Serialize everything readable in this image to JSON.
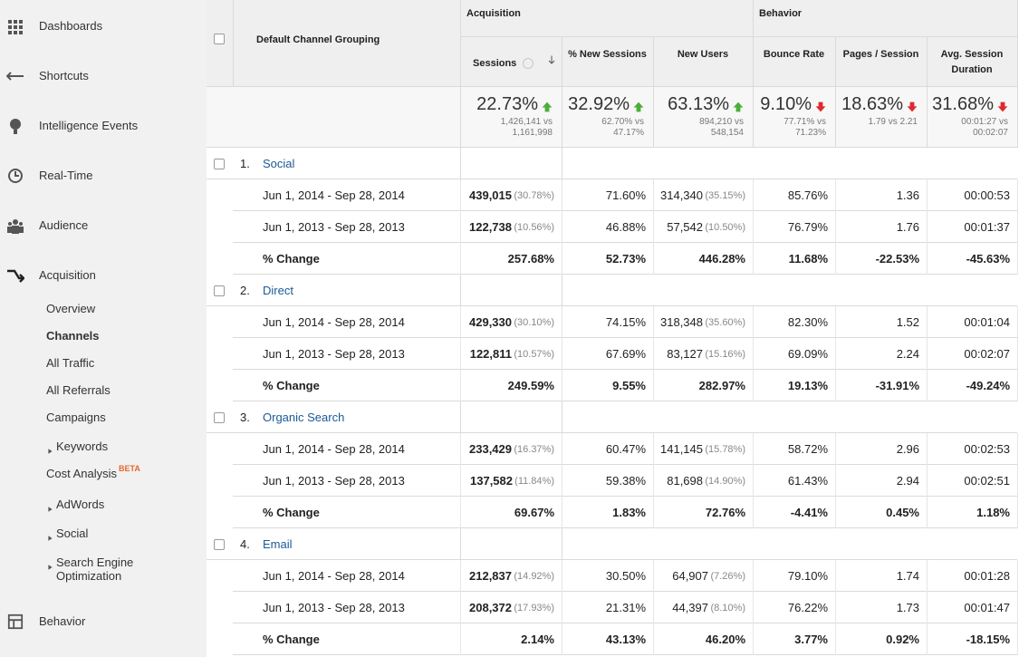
{
  "sidebar": {
    "main": [
      "Dashboards",
      "Shortcuts",
      "Intelligence Events",
      "Real-Time",
      "Audience",
      "Acquisition"
    ],
    "sub": [
      {
        "label": "Overview"
      },
      {
        "label": "Channels",
        "active": true
      },
      {
        "label": "All Traffic"
      },
      {
        "label": "All Referrals"
      },
      {
        "label": "Campaigns"
      },
      {
        "label": "Keywords",
        "expandable": true
      },
      {
        "label": "Cost Analysis",
        "badge": "BETA"
      },
      {
        "label": "AdWords",
        "expandable": true
      },
      {
        "label": "Social",
        "expandable": true
      },
      {
        "label": "Search Engine Optimization",
        "expandable": true
      }
    ],
    "bottom": "Behavior"
  },
  "table": {
    "dimension": "Default Channel Grouping",
    "groups": [
      {
        "label": "Acquisition",
        "span": 3
      },
      {
        "label": "Behavior",
        "span": 3
      }
    ],
    "columns": [
      "Sessions",
      "% New Sessions",
      "New Users",
      "Bounce Rate",
      "Pages / Session",
      "Avg. Session Duration"
    ],
    "summary": [
      {
        "change": "22.73%",
        "direction": "up",
        "detail": [
          "1,426,141 vs",
          "1,161,998"
        ]
      },
      {
        "change": "32.92%",
        "direction": "up",
        "detail": [
          "62.70% vs",
          "47.17%"
        ]
      },
      {
        "change": "63.13%",
        "direction": "up",
        "detail": [
          "894,210 vs",
          "548,154"
        ]
      },
      {
        "change": "9.10%",
        "direction": "down",
        "detail": [
          "77.71% vs",
          "71.23%"
        ]
      },
      {
        "change": "18.63%",
        "direction": "down",
        "detail": [
          "1.79 vs 2.21"
        ]
      },
      {
        "change": "31.68%",
        "direction": "down",
        "detail": [
          "00:01:27 vs",
          "00:02:07"
        ]
      }
    ],
    "channels": [
      {
        "index": "1.",
        "name": "Social",
        "rows": [
          {
            "label": "Jun 1, 2014 - Sep 28, 2014",
            "values": [
              "439,015",
              "71.60%",
              "314,340",
              "85.76%",
              "1.36",
              "00:00:53"
            ],
            "shares": {
              "0": "(30.78%)",
              "2": "(35.15%)"
            }
          },
          {
            "label": "Jun 1, 2013 - Sep 28, 2013",
            "values": [
              "122,738",
              "46.88%",
              "57,542",
              "76.79%",
              "1.76",
              "00:01:37"
            ],
            "shares": {
              "0": "(10.56%)",
              "2": "(10.50%)"
            }
          },
          {
            "label": "% Change",
            "bold": true,
            "values": [
              "257.68%",
              "52.73%",
              "446.28%",
              "11.68%",
              "-22.53%",
              "-45.63%"
            ]
          }
        ]
      },
      {
        "index": "2.",
        "name": "Direct",
        "rows": [
          {
            "label": "Jun 1, 2014 - Sep 28, 2014",
            "values": [
              "429,330",
              "74.15%",
              "318,348",
              "82.30%",
              "1.52",
              "00:01:04"
            ],
            "shares": {
              "0": "(30.10%)",
              "2": "(35.60%)"
            }
          },
          {
            "label": "Jun 1, 2013 - Sep 28, 2013",
            "values": [
              "122,811",
              "67.69%",
              "83,127",
              "69.09%",
              "2.24",
              "00:02:07"
            ],
            "shares": {
              "0": "(10.57%)",
              "2": "(15.16%)"
            }
          },
          {
            "label": "% Change",
            "bold": true,
            "values": [
              "249.59%",
              "9.55%",
              "282.97%",
              "19.13%",
              "-31.91%",
              "-49.24%"
            ]
          }
        ]
      },
      {
        "index": "3.",
        "name": "Organic Search",
        "rows": [
          {
            "label": "Jun 1, 2014 - Sep 28, 2014",
            "values": [
              "233,429",
              "60.47%",
              "141,145",
              "58.72%",
              "2.96",
              "00:02:53"
            ],
            "shares": {
              "0": "(16.37%)",
              "2": "(15.78%)"
            }
          },
          {
            "label": "Jun 1, 2013 - Sep 28, 2013",
            "values": [
              "137,582",
              "59.38%",
              "81,698",
              "61.43%",
              "2.94",
              "00:02:51"
            ],
            "shares": {
              "0": "(11.84%)",
              "2": "(14.90%)"
            }
          },
          {
            "label": "% Change",
            "bold": true,
            "values": [
              "69.67%",
              "1.83%",
              "72.76%",
              "-4.41%",
              "0.45%",
              "1.18%"
            ]
          }
        ]
      },
      {
        "index": "4.",
        "name": "Email",
        "rows": [
          {
            "label": "Jun 1, 2014 - Sep 28, 2014",
            "values": [
              "212,837",
              "30.50%",
              "64,907",
              "79.10%",
              "1.74",
              "00:01:28"
            ],
            "shares": {
              "0": "(14.92%)",
              "2": "(7.26%)"
            }
          },
          {
            "label": "Jun 1, 2013 - Sep 28, 2013",
            "values": [
              "208,372",
              "21.31%",
              "44,397",
              "76.22%",
              "1.73",
              "00:01:47"
            ],
            "shares": {
              "0": "(17.93%)",
              "2": "(8.10%)"
            }
          },
          {
            "label": "% Change",
            "bold": true,
            "values": [
              "2.14%",
              "43.13%",
              "46.20%",
              "3.77%",
              "0.92%",
              "-18.15%"
            ]
          }
        ]
      }
    ]
  }
}
